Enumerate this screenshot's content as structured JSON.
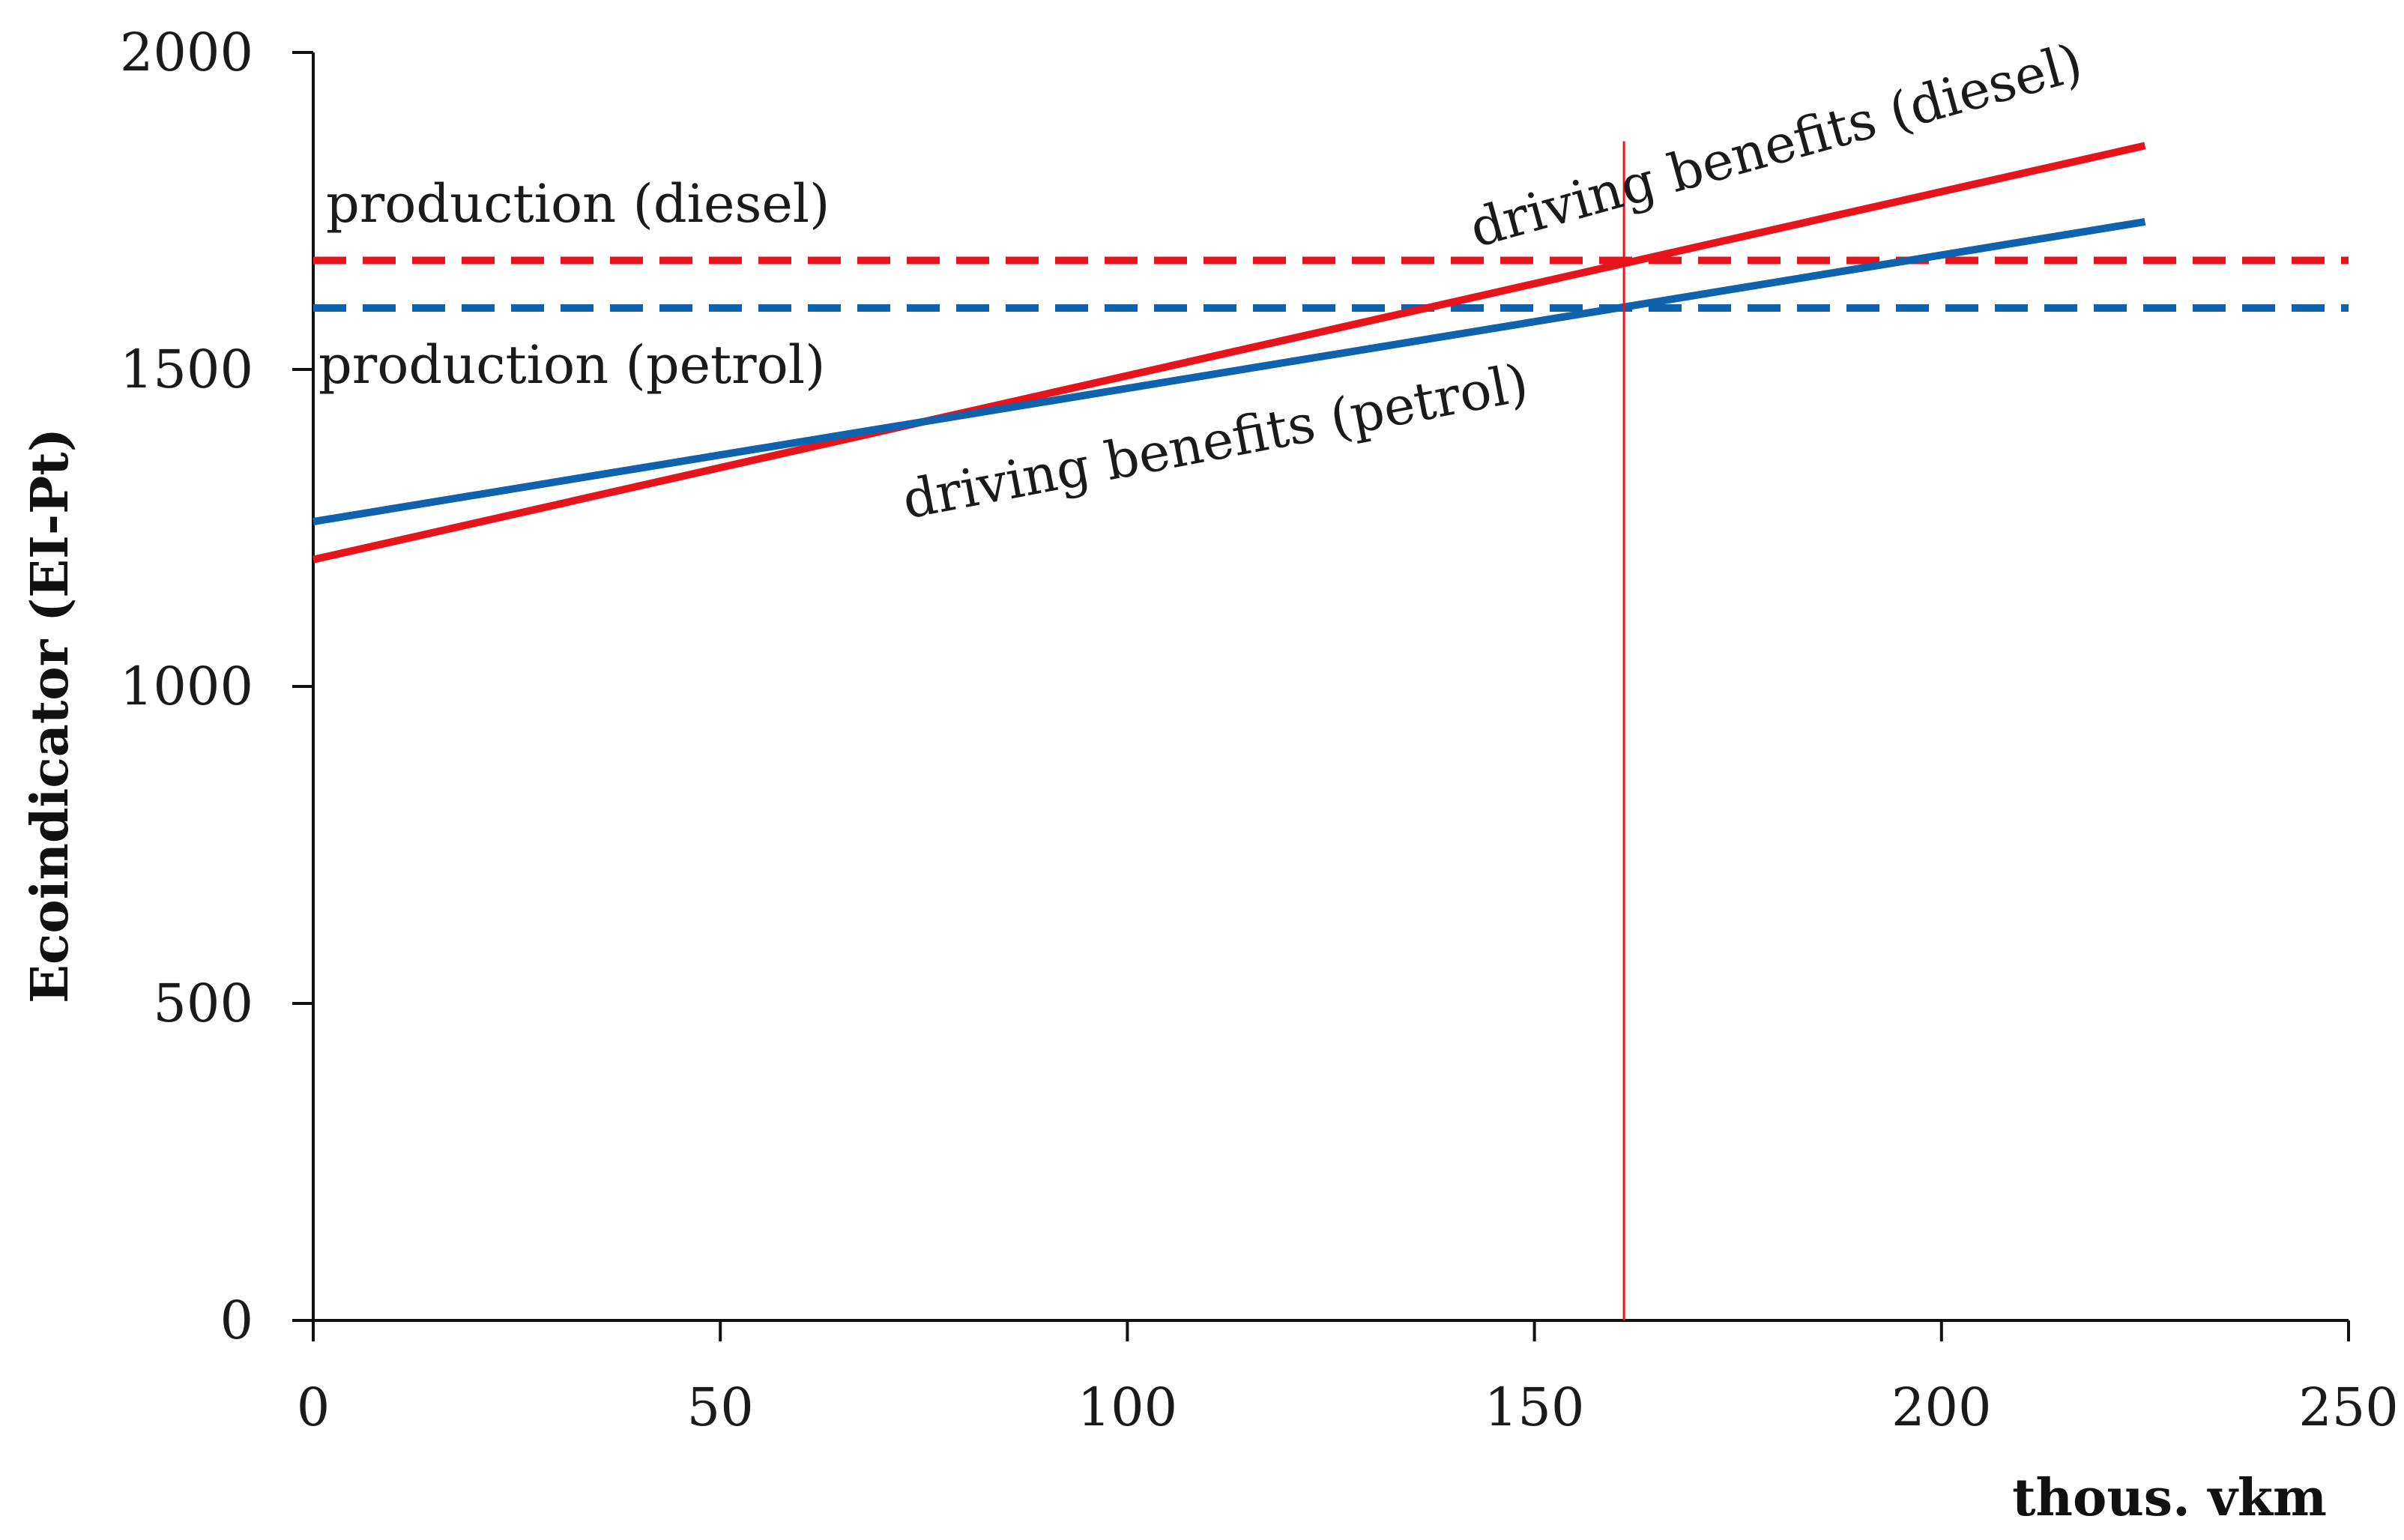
{
  "chart_data": {
    "type": "line",
    "title": "",
    "xlabel": "thous. vkm",
    "ylabel": "Ecoindicator (EI-Pt)",
    "xlim": [
      0,
      250
    ],
    "ylim": [
      0,
      2000
    ],
    "x_ticks": [
      0,
      50,
      100,
      150,
      200,
      250
    ],
    "y_ticks": [
      0,
      500,
      1000,
      1500,
      2000
    ],
    "grid": false,
    "series": [
      {
        "name": "production (diesel)",
        "style": "dashed",
        "color": "#e8141c",
        "x": [
          0,
          250
        ],
        "y": [
          1672,
          1672
        ]
      },
      {
        "name": "production (petrol)",
        "style": "dashed",
        "color": "#0f62ae",
        "x": [
          0,
          250
        ],
        "y": [
          1597,
          1597
        ]
      },
      {
        "name": "driving benefits (diesel)",
        "style": "solid",
        "color": "#e8141c",
        "x": [
          0,
          225
        ],
        "y": [
          1200,
          1853
        ]
      },
      {
        "name": "driving benefits (petrol)",
        "style": "solid",
        "color": "#0f62ae",
        "x": [
          0,
          225
        ],
        "y": [
          1260,
          1733
        ]
      }
    ],
    "reference_lines": [
      {
        "orientation": "vertical",
        "x": 161,
        "y_range": [
          0,
          1860
        ],
        "color": "#e8141c"
      }
    ],
    "annotations": [
      {
        "text": "production (diesel)",
        "series": 0
      },
      {
        "text": "production (petrol)",
        "series": 1
      },
      {
        "text": "driving benefits (diesel)",
        "series": 2
      },
      {
        "text": "driving benefits (petrol)",
        "series": 3
      }
    ]
  }
}
